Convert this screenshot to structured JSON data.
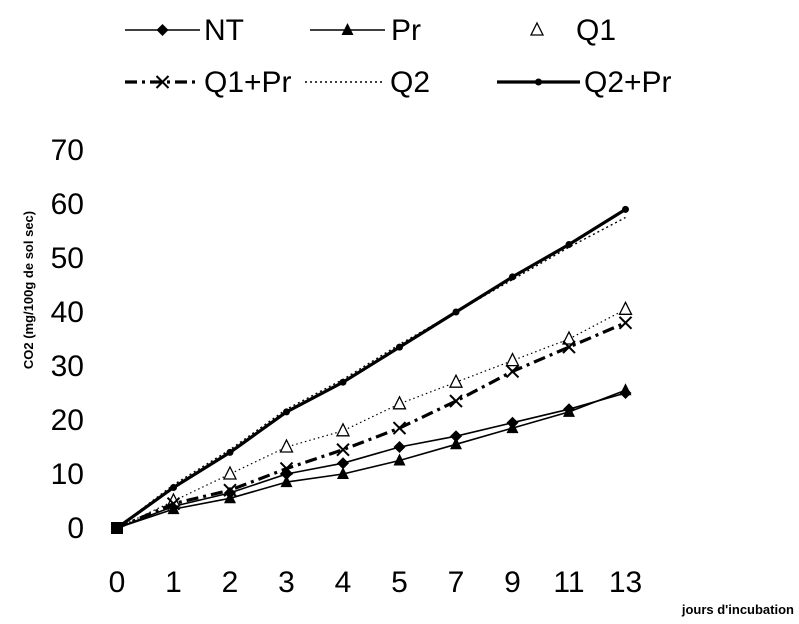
{
  "chart_data": {
    "type": "line",
    "title": "",
    "xlabel": "jours d'incubation",
    "ylabel": "CO2 (mg/100g de sol sec)",
    "x": [
      "0",
      "1",
      "2",
      "3",
      "4",
      "5",
      "7",
      "9",
      "11",
      "13"
    ],
    "ylim": [
      0,
      70
    ],
    "yticks": [
      "0",
      "10",
      "20",
      "30",
      "40",
      "50",
      "60",
      "70"
    ],
    "grid": false,
    "legend": "top",
    "series": [
      {
        "name": "NT",
        "style": "thin-diamond",
        "values": [
          0,
          4.0,
          6.5,
          10.0,
          12.0,
          15.0,
          17.0,
          19.5,
          22.0,
          25.0
        ]
      },
      {
        "name": "Pr",
        "style": "thin-triangle",
        "values": [
          0,
          3.5,
          5.5,
          8.5,
          10.0,
          12.5,
          15.5,
          18.5,
          21.5,
          25.5
        ]
      },
      {
        "name": "Q1",
        "style": "open-triangle",
        "values": [
          0,
          5.0,
          10.0,
          15.0,
          18.0,
          23.0,
          27.0,
          31.0,
          35.0,
          40.5
        ]
      },
      {
        "name": "Q1+Pr",
        "style": "dashdot-x",
        "values": [
          0,
          4.5,
          7.0,
          11.0,
          14.5,
          18.5,
          23.5,
          29.0,
          33.5,
          38.0
        ]
      },
      {
        "name": "Q2",
        "style": "dotted",
        "values": [
          0,
          8.0,
          14.5,
          22.0,
          27.5,
          34.0,
          40.0,
          46.0,
          52.0,
          57.5
        ]
      },
      {
        "name": "Q2+Pr",
        "style": "thick-dot",
        "values": [
          0,
          7.5,
          14.0,
          21.5,
          27.0,
          33.5,
          40.0,
          46.5,
          52.5,
          59.0
        ]
      }
    ]
  }
}
